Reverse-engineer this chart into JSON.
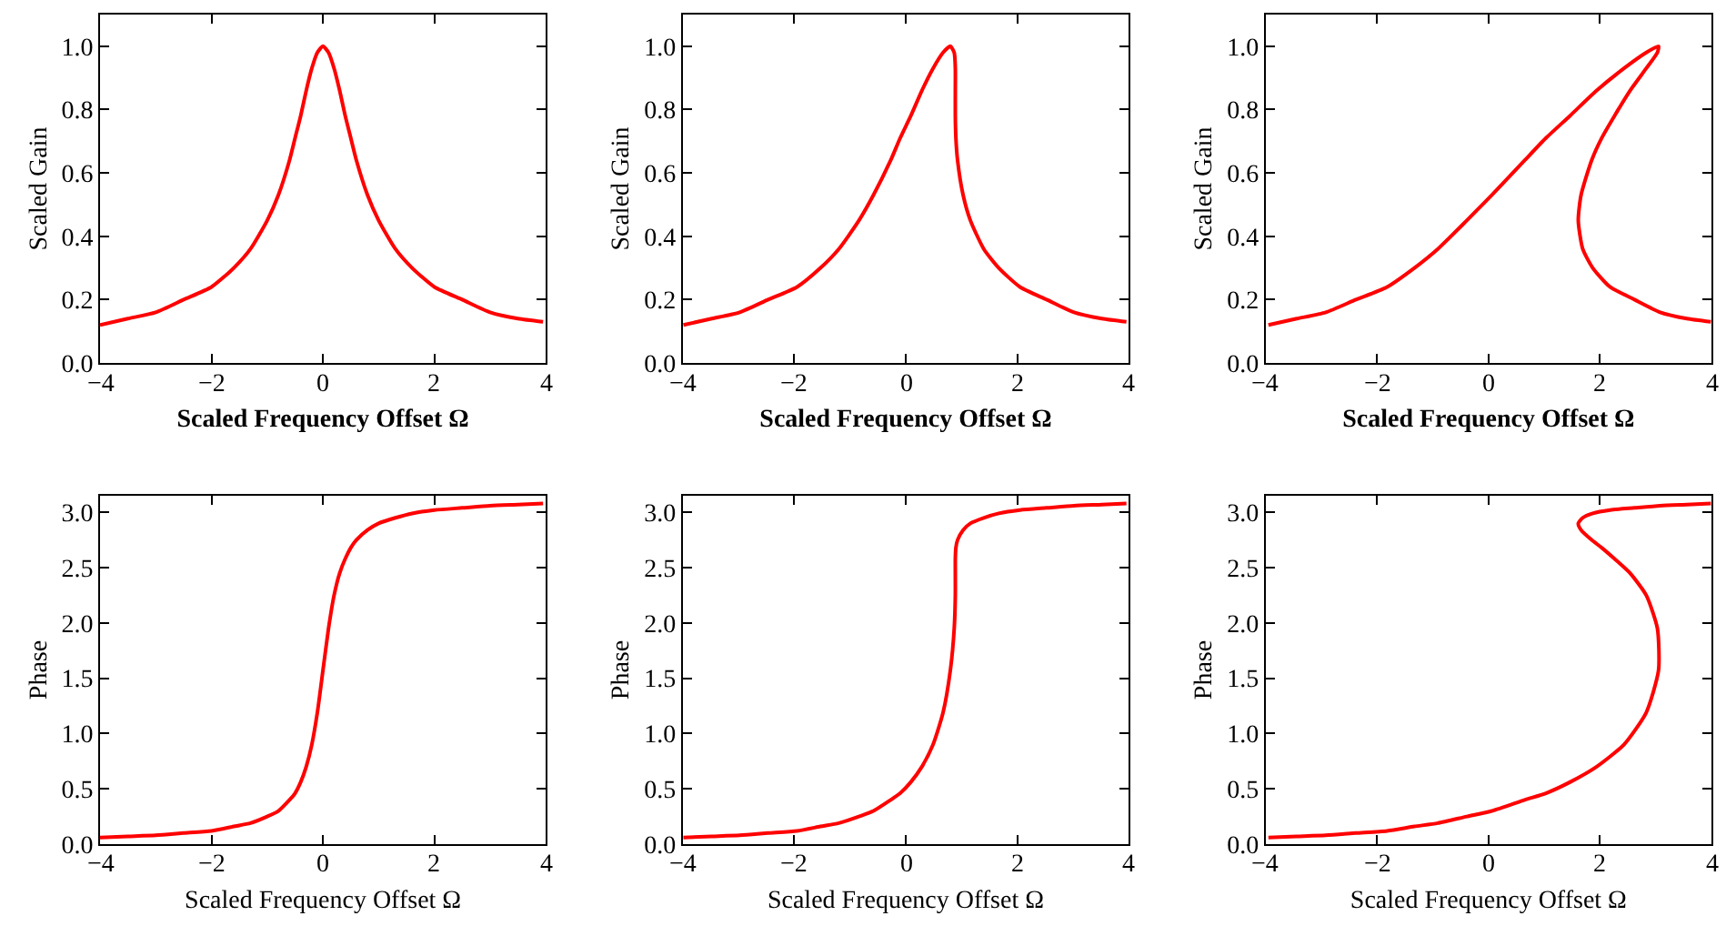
{
  "chart_data": [
    {
      "type": "line",
      "xlabel": "Scaled Frequency Offset Ω",
      "ylabel": "Scaled Gain",
      "xlim": [
        -4,
        4
      ],
      "ylim": [
        0,
        1.1
      ],
      "xticks": [
        -4,
        -2,
        0,
        2,
        4
      ],
      "yticks": [
        {
          "value": 0,
          "label": "0.0"
        },
        0.2,
        0.4,
        0.6,
        0.8,
        {
          "value": 1,
          "label": "1.0"
        }
      ],
      "grid": false,
      "marker": "none",
      "line_style": "solid",
      "series": [
        {
          "color": "#ff0000",
          "x": [
            -4,
            -3.5,
            -3,
            -2.5,
            -2,
            -1.6,
            -1.3,
            -1,
            -0.8,
            -0.6,
            -0.5,
            -0.4,
            -0.3,
            -0.2,
            -0.1,
            0,
            0.1,
            0.2,
            0.3,
            0.4,
            0.5,
            0.6,
            0.8,
            1,
            1.3,
            1.6,
            2,
            2.5,
            3,
            3.5,
            3.95
          ],
          "values": [
            0.12,
            0.14,
            0.16,
            0.2,
            0.24,
            0.3,
            0.36,
            0.45,
            0.53,
            0.64,
            0.71,
            0.78,
            0.86,
            0.93,
            0.98,
            1,
            0.98,
            0.93,
            0.86,
            0.78,
            0.71,
            0.64,
            0.53,
            0.45,
            0.36,
            0.3,
            0.24,
            0.2,
            0.16,
            0.14,
            0.13
          ]
        }
      ]
    },
    {
      "type": "line",
      "xlabel": "Scaled Frequency Offset Ω",
      "ylabel": "Scaled Gain",
      "xlim": [
        -4,
        4
      ],
      "ylim": [
        0,
        1.1
      ],
      "xticks": [
        -4,
        -2,
        0,
        2,
        4
      ],
      "yticks": [
        {
          "value": 0,
          "label": "0.0"
        },
        0.2,
        0.4,
        0.6,
        0.8,
        {
          "value": 1,
          "label": "1.0"
        }
      ],
      "grid": false,
      "marker": "none",
      "line_style": "solid",
      "series": [
        {
          "color": "#ff0000",
          "x": [
            -3.99,
            -3.48,
            -2.98,
            -2.47,
            -1.95,
            -1.53,
            -1.2,
            -0.84,
            -0.58,
            -0.27,
            -0.1,
            0.09,
            0.29,
            0.49,
            0.67,
            0.8,
            0.87,
            0.89,
            0.89,
            0.89,
            0.9,
            0.93,
            1.03,
            1.16,
            1.4,
            1.67,
            2.05,
            2.53,
            3.02,
            3.52,
            3.96
          ],
          "values": [
            0.12,
            0.14,
            0.16,
            0.2,
            0.24,
            0.3,
            0.36,
            0.45,
            0.53,
            0.64,
            0.71,
            0.78,
            0.86,
            0.93,
            0.98,
            1,
            0.98,
            0.93,
            0.86,
            0.78,
            0.71,
            0.64,
            0.53,
            0.45,
            0.36,
            0.3,
            0.24,
            0.2,
            0.16,
            0.14,
            0.13
          ]
        }
      ]
    },
    {
      "type": "line",
      "xlabel": "Scaled Frequency Offset Ω",
      "ylabel": "Scaled Gain",
      "xlim": [
        -4,
        4
      ],
      "ylim": [
        0,
        1.1
      ],
      "xticks": [
        -4,
        -2,
        0,
        2,
        4
      ],
      "yticks": [
        {
          "value": 0,
          "label": "0.0"
        },
        0.2,
        0.4,
        0.6,
        0.8,
        {
          "value": 1,
          "label": "1.0"
        }
      ],
      "grid": false,
      "marker": "none",
      "line_style": "solid",
      "series": [
        {
          "color": "#ff0000",
          "x": [
            -3.95,
            -3.44,
            -2.92,
            -2.38,
            -1.82,
            -1.33,
            -0.91,
            -0.39,
            0.06,
            0.65,
            1.03,
            1.46,
            1.94,
            2.43,
            2.83,
            3.05,
            3.03,
            2.83,
            2.54,
            2.26,
            2.03,
            1.85,
            1.66,
            1.61,
            1.69,
            1.87,
            2.18,
            2.62,
            3.08,
            3.56,
            3.99
          ],
          "values": [
            0.12,
            0.14,
            0.16,
            0.2,
            0.24,
            0.3,
            0.36,
            0.45,
            0.53,
            0.64,
            0.71,
            0.78,
            0.86,
            0.93,
            0.98,
            1,
            0.98,
            0.93,
            0.86,
            0.78,
            0.71,
            0.64,
            0.53,
            0.45,
            0.36,
            0.3,
            0.24,
            0.2,
            0.16,
            0.14,
            0.13
          ]
        }
      ]
    },
    {
      "type": "line",
      "xlabel": "Scaled Frequency Offset Ω",
      "ylabel": "Phase",
      "xlim": [
        -4,
        4
      ],
      "ylim": [
        0,
        3.15
      ],
      "xticks": [
        -4,
        -2,
        0,
        2,
        4
      ],
      "yticks": [
        {
          "value": 0,
          "label": "0.0"
        },
        0.5,
        {
          "value": 1,
          "label": "1.0"
        },
        1.5,
        {
          "value": 2,
          "label": "2.0"
        },
        2.5,
        {
          "value": 3,
          "label": "3.0"
        }
      ],
      "grid": false,
      "marker": "none",
      "line_style": "solid",
      "series": [
        {
          "color": "#ff0000",
          "x": [
            -4,
            -3.5,
            -3,
            -2.5,
            -2,
            -1.6,
            -1.3,
            -1,
            -0.8,
            -0.6,
            -0.5,
            -0.4,
            -0.3,
            -0.2,
            -0.1,
            0,
            0.1,
            0.2,
            0.3,
            0.4,
            0.5,
            0.6,
            0.8,
            1,
            1.3,
            1.6,
            2,
            2.5,
            3,
            3.5,
            3.95
          ],
          "values": [
            0.06,
            0.07,
            0.08,
            0.1,
            0.12,
            0.16,
            0.19,
            0.25,
            0.3,
            0.4,
            0.46,
            0.56,
            0.7,
            0.9,
            1.19,
            1.57,
            1.95,
            2.25,
            2.45,
            2.58,
            2.68,
            2.75,
            2.84,
            2.9,
            2.95,
            2.99,
            3.02,
            3.04,
            3.06,
            3.07,
            3.08
          ]
        }
      ]
    },
    {
      "type": "line",
      "xlabel": "Scaled Frequency Offset Ω",
      "ylabel": "Phase",
      "xlim": [
        -4,
        4
      ],
      "ylim": [
        0,
        3.15
      ],
      "xticks": [
        -4,
        -2,
        0,
        2,
        4
      ],
      "yticks": [
        {
          "value": 0,
          "label": "0.0"
        },
        0.5,
        {
          "value": 1,
          "label": "1.0"
        },
        1.5,
        {
          "value": 2,
          "label": "2.0"
        },
        2.5,
        {
          "value": 3,
          "label": "3.0"
        }
      ],
      "grid": false,
      "marker": "none",
      "line_style": "solid",
      "series": [
        {
          "color": "#ff0000",
          "x": [
            -3.99,
            -3.48,
            -2.98,
            -2.47,
            -1.95,
            -1.53,
            -1.2,
            -0.84,
            -0.58,
            -0.27,
            -0.1,
            0.09,
            0.29,
            0.49,
            0.67,
            0.8,
            0.87,
            0.89,
            0.89,
            0.89,
            0.9,
            0.93,
            1.03,
            1.16,
            1.4,
            1.67,
            2.05,
            2.53,
            3.02,
            3.52,
            3.96
          ],
          "values": [
            0.06,
            0.07,
            0.08,
            0.1,
            0.12,
            0.16,
            0.19,
            0.25,
            0.3,
            0.4,
            0.46,
            0.56,
            0.7,
            0.9,
            1.19,
            1.57,
            1.95,
            2.25,
            2.45,
            2.58,
            2.68,
            2.75,
            2.84,
            2.9,
            2.95,
            2.99,
            3.02,
            3.04,
            3.06,
            3.07,
            3.08
          ]
        }
      ]
    },
    {
      "type": "line",
      "xlabel": "Scaled Frequency Offset Ω",
      "ylabel": "Phase",
      "xlim": [
        -4,
        4
      ],
      "ylim": [
        0,
        3.15
      ],
      "xticks": [
        -4,
        -2,
        0,
        2,
        4
      ],
      "yticks": [
        {
          "value": 0,
          "label": "0.0"
        },
        0.5,
        {
          "value": 1,
          "label": "1.0"
        },
        1.5,
        {
          "value": 2,
          "label": "2.0"
        },
        2.5,
        {
          "value": 3,
          "label": "3.0"
        }
      ],
      "grid": false,
      "marker": "none",
      "line_style": "solid",
      "series": [
        {
          "color": "#ff0000",
          "x": [
            -3.95,
            -3.44,
            -2.92,
            -2.38,
            -1.82,
            -1.33,
            -0.91,
            -0.39,
            0.06,
            0.65,
            1.03,
            1.46,
            1.94,
            2.43,
            2.83,
            3.05,
            3.03,
            2.83,
            2.54,
            2.26,
            2.03,
            1.85,
            1.66,
            1.61,
            1.69,
            1.87,
            2.18,
            2.62,
            3.08,
            3.56,
            3.99
          ],
          "values": [
            0.06,
            0.07,
            0.08,
            0.1,
            0.12,
            0.16,
            0.19,
            0.25,
            0.3,
            0.4,
            0.46,
            0.56,
            0.7,
            0.9,
            1.19,
            1.57,
            1.95,
            2.25,
            2.45,
            2.58,
            2.68,
            2.75,
            2.84,
            2.9,
            2.95,
            2.99,
            3.02,
            3.04,
            3.06,
            3.07,
            3.08
          ]
        }
      ]
    }
  ]
}
